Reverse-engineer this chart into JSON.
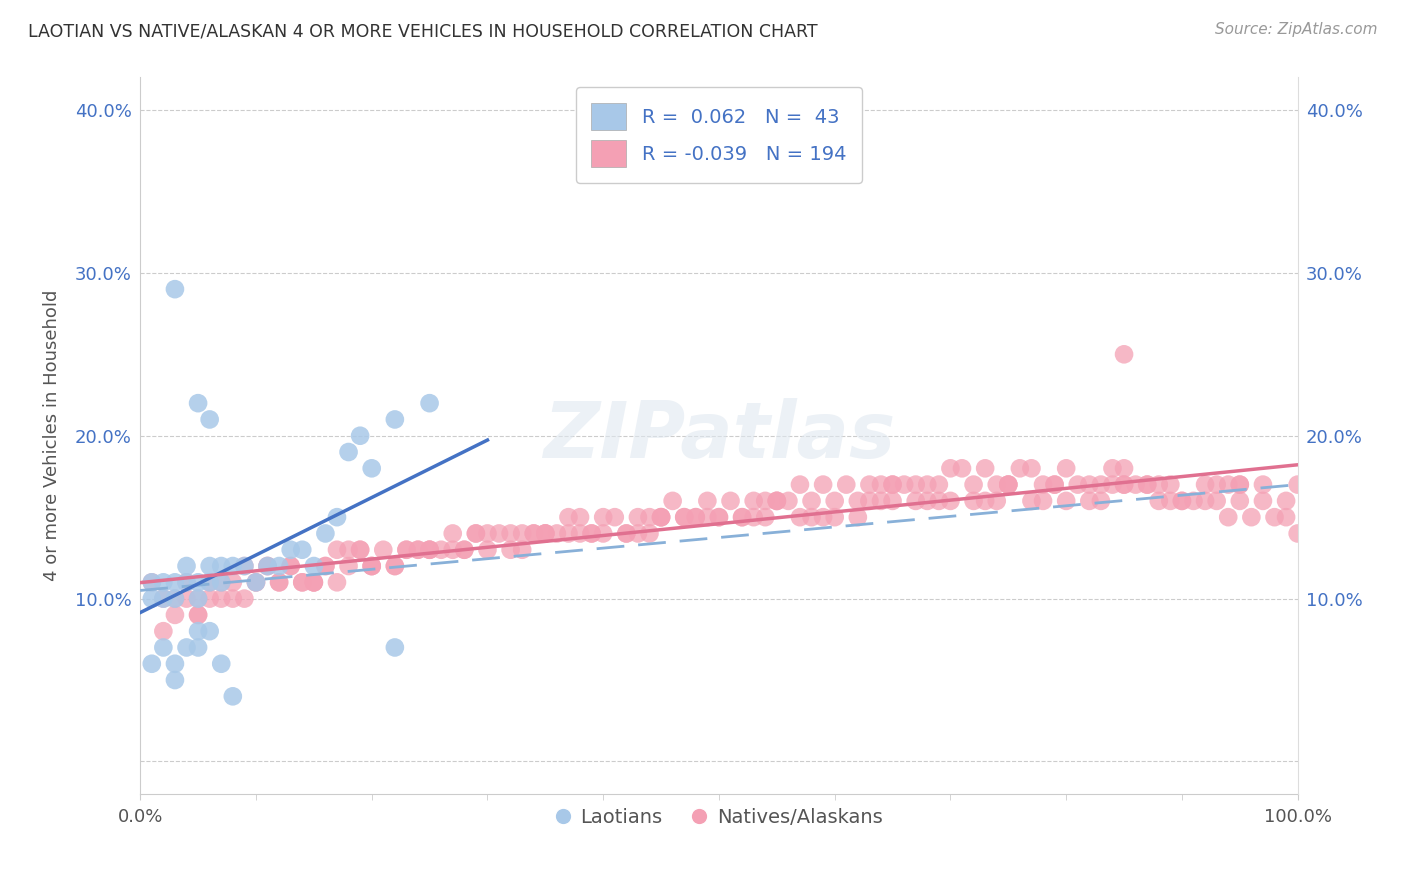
{
  "title": "LAOTIAN VS NATIVE/ALASKAN 4 OR MORE VEHICLES IN HOUSEHOLD CORRELATION CHART",
  "source": "Source: ZipAtlas.com",
  "ylabel": "4 or more Vehicles in Household",
  "xlim": [
    0,
    100
  ],
  "ylim": [
    -2,
    42
  ],
  "ytick_vals": [
    0,
    10,
    20,
    30,
    40
  ],
  "ytick_labels": [
    "",
    "10.0%",
    "20.0%",
    "30.0%",
    "40.0%"
  ],
  "xtick_vals": [
    0,
    100
  ],
  "xtick_labels": [
    "0.0%",
    "100.0%"
  ],
  "blue_R": 0.062,
  "blue_N": 43,
  "pink_R": -0.039,
  "pink_N": 194,
  "blue_color": "#a8c8e8",
  "pink_color": "#f4a0b4",
  "blue_line_color": "#4472c4",
  "pink_line_color": "#e07090",
  "dashed_line_color": "#88b0d8",
  "watermark": "ZIPatlas",
  "legend_label_blue": "Laotians",
  "legend_label_pink": "Natives/Alaskans",
  "blue_x": [
    1,
    1,
    2,
    2,
    3,
    3,
    4,
    4,
    5,
    5,
    6,
    6,
    7,
    7,
    8,
    9,
    10,
    11,
    12,
    13,
    14,
    15,
    16,
    17,
    18,
    19,
    20,
    22,
    25,
    3,
    5,
    6,
    1,
    2,
    3,
    3,
    4,
    5,
    5,
    6,
    7,
    8,
    22
  ],
  "blue_y": [
    10,
    11,
    10,
    11,
    10,
    11,
    11,
    12,
    10,
    11,
    11,
    12,
    12,
    11,
    12,
    12,
    11,
    12,
    12,
    13,
    13,
    12,
    14,
    15,
    19,
    20,
    18,
    21,
    22,
    29,
    22,
    21,
    6,
    7,
    5,
    6,
    7,
    7,
    8,
    8,
    6,
    4,
    7
  ],
  "pink_x": [
    1,
    2,
    3,
    4,
    5,
    6,
    7,
    8,
    9,
    10,
    11,
    12,
    13,
    14,
    15,
    16,
    17,
    18,
    19,
    20,
    21,
    22,
    23,
    24,
    25,
    26,
    27,
    28,
    29,
    30,
    31,
    32,
    33,
    34,
    35,
    36,
    37,
    38,
    39,
    40,
    41,
    42,
    43,
    44,
    45,
    46,
    47,
    48,
    49,
    50,
    51,
    52,
    53,
    54,
    55,
    56,
    57,
    58,
    59,
    60,
    61,
    62,
    63,
    64,
    65,
    66,
    67,
    68,
    69,
    70,
    71,
    72,
    73,
    74,
    75,
    76,
    77,
    78,
    79,
    80,
    81,
    82,
    83,
    84,
    85,
    86,
    87,
    88,
    89,
    90,
    91,
    92,
    93,
    94,
    95,
    96,
    97,
    98,
    99,
    100,
    3,
    6,
    10,
    15,
    20,
    28,
    38,
    48,
    58,
    68,
    78,
    88,
    95,
    4,
    7,
    12,
    18,
    25,
    35,
    45,
    55,
    65,
    75,
    85,
    2,
    5,
    9,
    14,
    22,
    32,
    42,
    52,
    62,
    72,
    82,
    92,
    8,
    16,
    24,
    34,
    44,
    54,
    64,
    74,
    84,
    94,
    11,
    19,
    29,
    39,
    49,
    59,
    69,
    79,
    89,
    99,
    13,
    23,
    33,
    43,
    53,
    63,
    73,
    83,
    93,
    17,
    27,
    37,
    47,
    57,
    67,
    77,
    87,
    97,
    50,
    60,
    70,
    80,
    90,
    100,
    40,
    30,
    20,
    55,
    65,
    75,
    85,
    95,
    45,
    5,
    15,
    25,
    35,
    85
  ],
  "pink_y": [
    11,
    10,
    10,
    11,
    10,
    11,
    10,
    11,
    12,
    11,
    12,
    11,
    12,
    11,
    11,
    12,
    11,
    12,
    13,
    12,
    13,
    12,
    13,
    13,
    13,
    13,
    14,
    13,
    14,
    13,
    14,
    14,
    13,
    14,
    14,
    14,
    15,
    15,
    14,
    15,
    15,
    14,
    15,
    15,
    15,
    16,
    15,
    15,
    16,
    15,
    16,
    15,
    16,
    16,
    16,
    16,
    17,
    16,
    17,
    16,
    17,
    16,
    17,
    17,
    17,
    17,
    17,
    17,
    17,
    18,
    18,
    17,
    18,
    17,
    17,
    18,
    18,
    17,
    17,
    18,
    17,
    17,
    17,
    18,
    17,
    17,
    17,
    17,
    16,
    16,
    16,
    16,
    16,
    15,
    16,
    15,
    16,
    15,
    15,
    14,
    9,
    10,
    11,
    11,
    12,
    13,
    14,
    15,
    15,
    16,
    16,
    16,
    17,
    10,
    11,
    11,
    13,
    13,
    14,
    15,
    16,
    17,
    17,
    18,
    8,
    9,
    10,
    11,
    12,
    13,
    14,
    15,
    15,
    16,
    16,
    17,
    10,
    12,
    13,
    14,
    14,
    15,
    16,
    16,
    17,
    17,
    12,
    13,
    14,
    14,
    15,
    15,
    16,
    17,
    17,
    16,
    12,
    13,
    14,
    14,
    15,
    16,
    16,
    16,
    17,
    13,
    13,
    14,
    15,
    15,
    16,
    16,
    17,
    17,
    15,
    15,
    16,
    16,
    16,
    17,
    14,
    14,
    12,
    16,
    16,
    17,
    17,
    17,
    15,
    9,
    11,
    13,
    14,
    25
  ]
}
